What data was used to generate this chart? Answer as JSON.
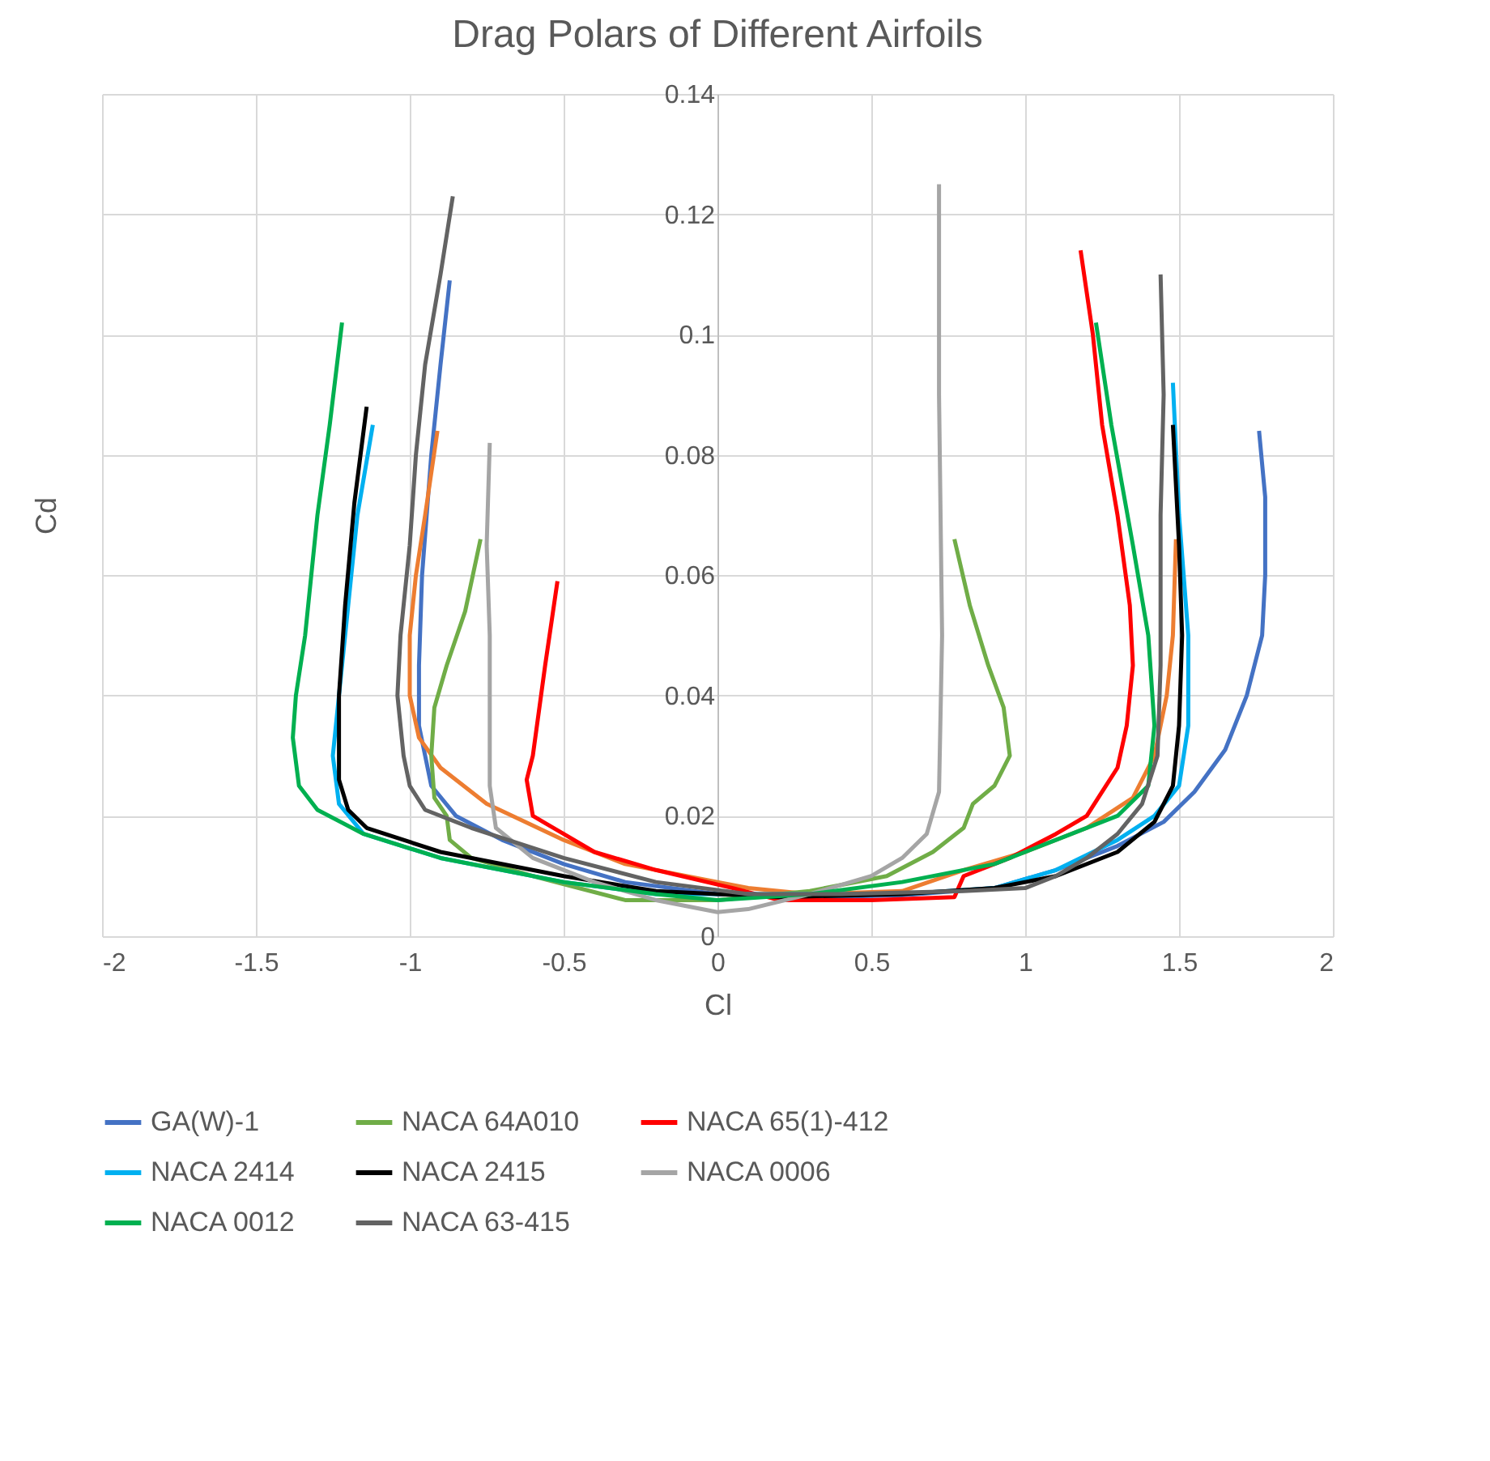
{
  "chart_data": {
    "type": "line",
    "title": "Drag Polars of Different Airfoils",
    "xlabel": "Cl",
    "ylabel": "Cd",
    "xlim": [
      -2,
      2
    ],
    "xticks": [
      -2,
      -1.5,
      -1,
      -0.5,
      0,
      0.5,
      1,
      1.5,
      2
    ],
    "ylim": [
      0,
      0.14
    ],
    "yticks": [
      0,
      0.02,
      0.04,
      0.06,
      0.08,
      0.1,
      0.12,
      0.14
    ],
    "grid": true,
    "legend": "bottom",
    "marker": "none",
    "line_style": "solid",
    "series": [
      {
        "name": "GA(W)-1",
        "color": "#4472c4",
        "x": [
          -0.87,
          -0.9,
          -0.93,
          -0.96,
          -0.97,
          -0.97,
          -0.93,
          -0.85,
          -0.7,
          -0.5,
          -0.3,
          0,
          0.3,
          0.6,
          0.9,
          1.1,
          1.3,
          1.45,
          1.55,
          1.65,
          1.72,
          1.77,
          1.78,
          1.78,
          1.76
        ],
        "values": [
          0.109,
          0.095,
          0.08,
          0.06,
          0.045,
          0.035,
          0.025,
          0.02,
          0.016,
          0.012,
          0.009,
          0.007,
          0.0065,
          0.0068,
          0.008,
          0.011,
          0.015,
          0.019,
          0.024,
          0.031,
          0.04,
          0.05,
          0.06,
          0.073,
          0.084
        ]
      },
      {
        "color": "#ed7d31",
        "x": [
          -0.91,
          -0.95,
          -0.98,
          -1.0,
          -1.0,
          -0.97,
          -0.9,
          -0.75,
          -0.5,
          -0.3,
          0,
          0.1,
          0.3,
          0.6,
          0.8,
          1.0,
          1.2,
          1.35,
          1.42,
          1.46,
          1.48,
          1.49
        ],
        "values": [
          0.084,
          0.07,
          0.06,
          0.05,
          0.04,
          0.033,
          0.028,
          0.022,
          0.016,
          0.012,
          0.009,
          0.008,
          0.007,
          0.0075,
          0.011,
          0.014,
          0.018,
          0.023,
          0.03,
          0.04,
          0.05,
          0.066
        ]
      },
      {
        "name": "NACA 64A010",
        "color": "#70ad47",
        "x": [
          -0.77,
          -0.82,
          -0.88,
          -0.92,
          -0.93,
          -0.92,
          -0.88,
          -0.87,
          -0.8,
          -0.6,
          -0.3,
          0,
          0.3,
          0.55,
          0.7,
          0.8,
          0.83,
          0.9,
          0.95,
          0.93,
          0.88,
          0.82,
          0.77
        ],
        "values": [
          0.066,
          0.054,
          0.045,
          0.038,
          0.03,
          0.023,
          0.02,
          0.016,
          0.013,
          0.01,
          0.006,
          0.006,
          0.0075,
          0.01,
          0.014,
          0.018,
          0.022,
          0.025,
          0.03,
          0.038,
          0.045,
          0.055,
          0.066
        ]
      },
      {
        "name": "NACA 65(1)-412",
        "color": "#ff0000",
        "x": [
          -0.52,
          -0.56,
          -0.6,
          -0.62,
          -0.6,
          -0.5,
          -0.4,
          -0.2,
          0.05,
          0.2,
          0.5,
          0.77,
          0.8,
          0.95,
          1.1,
          1.2,
          1.25,
          1.3,
          1.33,
          1.35,
          1.34,
          1.3,
          1.25,
          1.22,
          1.18
        ],
        "values": [
          0.059,
          0.045,
          0.03,
          0.026,
          0.02,
          0.017,
          0.014,
          0.011,
          0.008,
          0.006,
          0.006,
          0.0065,
          0.01,
          0.013,
          0.017,
          0.02,
          0.024,
          0.028,
          0.035,
          0.045,
          0.055,
          0.07,
          0.085,
          0.1,
          0.114
        ]
      },
      {
        "name": "NACA 2414",
        "color": "#00b0f0",
        "x": [
          -1.12,
          -1.17,
          -1.2,
          -1.23,
          -1.25,
          -1.23,
          -1.15,
          -0.9,
          -0.5,
          -0.2,
          0.6,
          0.9,
          1.1,
          1.3,
          1.42,
          1.5,
          1.53,
          1.53,
          1.5,
          1.48
        ],
        "values": [
          0.085,
          0.07,
          0.055,
          0.04,
          0.03,
          0.022,
          0.017,
          0.013,
          0.009,
          0.007,
          0.007,
          0.008,
          0.011,
          0.016,
          0.02,
          0.025,
          0.035,
          0.05,
          0.07,
          0.092
        ]
      },
      {
        "name": "NACA 2415",
        "color": "#000000",
        "x": [
          -1.14,
          -1.18,
          -1.21,
          -1.23,
          -1.23,
          -1.2,
          -1.14,
          -0.9,
          -0.5,
          -0.2,
          0.2,
          0.6,
          0.9,
          1.1,
          1.3,
          1.42,
          1.48,
          1.5,
          1.51,
          1.5,
          1.48
        ],
        "values": [
          0.088,
          0.072,
          0.055,
          0.04,
          0.026,
          0.021,
          0.018,
          0.014,
          0.01,
          0.0075,
          0.0065,
          0.007,
          0.008,
          0.01,
          0.014,
          0.019,
          0.025,
          0.035,
          0.05,
          0.065,
          0.085
        ]
      },
      {
        "name": "NACA 0006",
        "color": "#a5a5a5",
        "x": [
          -0.74,
          -0.75,
          -0.74,
          -0.74,
          -0.74,
          -0.72,
          -0.6,
          -0.4,
          -0.2,
          0,
          0.1,
          0.3,
          0.5,
          0.6,
          0.68,
          0.72,
          0.73,
          0.72,
          0.72
        ],
        "values": [
          0.082,
          0.065,
          0.05,
          0.04,
          0.025,
          0.018,
          0.013,
          0.009,
          0.006,
          0.004,
          0.0045,
          0.007,
          0.01,
          0.013,
          0.017,
          0.024,
          0.05,
          0.09,
          0.125
        ]
      },
      {
        "name": "NACA 0012",
        "color": "#00b050",
        "x": [
          -1.22,
          -1.26,
          -1.3,
          -1.34,
          -1.37,
          -1.38,
          -1.36,
          -1.3,
          -1.15,
          -0.9,
          -0.5,
          -0.2,
          0,
          0.3,
          0.6,
          0.9,
          1.1,
          1.3,
          1.4,
          1.42,
          1.4,
          1.35,
          1.28,
          1.23
        ],
        "values": [
          0.102,
          0.085,
          0.07,
          0.05,
          0.04,
          0.033,
          0.025,
          0.021,
          0.017,
          0.013,
          0.009,
          0.007,
          0.006,
          0.007,
          0.009,
          0.012,
          0.016,
          0.02,
          0.025,
          0.035,
          0.05,
          0.065,
          0.085,
          0.102
        ]
      },
      {
        "name": "NACA 63-415",
        "color": "#636363",
        "x": [
          -0.86,
          -0.9,
          -0.95,
          -0.98,
          -1.0,
          -1.03,
          -1.04,
          -1.02,
          -1.0,
          -0.95,
          -0.8,
          -0.5,
          -0.2,
          0.1,
          0.4,
          0.8,
          1.0,
          1.1,
          1.2,
          1.3,
          1.38,
          1.43,
          1.44,
          1.44,
          1.45,
          1.44
        ],
        "values": [
          0.123,
          0.11,
          0.095,
          0.08,
          0.065,
          0.05,
          0.04,
          0.03,
          0.025,
          0.021,
          0.018,
          0.013,
          0.009,
          0.007,
          0.007,
          0.0075,
          0.008,
          0.01,
          0.013,
          0.017,
          0.022,
          0.03,
          0.045,
          0.07,
          0.09,
          0.11
        ]
      }
    ]
  }
}
